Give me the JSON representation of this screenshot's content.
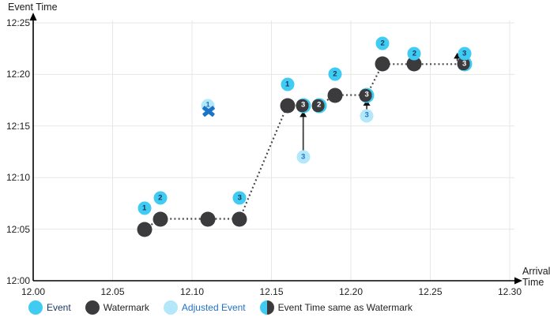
{
  "chart_data": {
    "type": "scatter",
    "ylabel": "Event Time",
    "xlabel_lines": [
      "Arrival",
      "Time"
    ],
    "x_ticks": [
      "12.00",
      "12.05",
      "12.10",
      "12.15",
      "12.20",
      "12.25",
      "12.30"
    ],
    "y_ticks": [
      "12:00",
      "12:05",
      "12:10",
      "12:15",
      "12:20",
      "12:25"
    ],
    "x_range": [
      12.0,
      12.3
    ],
    "y_range_minutes": [
      0,
      25
    ],
    "grid": true,
    "series": {
      "events": [
        {
          "n": "1",
          "arrival": 12.07,
          "event_time": "12:07"
        },
        {
          "n": "2",
          "arrival": 12.08,
          "event_time": "12:08"
        },
        {
          "n": "3",
          "arrival": 12.13,
          "event_time": "12:08"
        },
        {
          "n": "1",
          "arrival": 12.16,
          "event_time": "12:19"
        },
        {
          "n": "2",
          "arrival": 12.19,
          "event_time": "12:20"
        },
        {
          "n": "2",
          "arrival": 12.22,
          "event_time": "12:23"
        },
        {
          "n": "2",
          "arrival": 12.24,
          "event_time": "12:22"
        },
        {
          "n": "3",
          "arrival": 12.2715,
          "event_time": "12:22"
        }
      ],
      "watermarks": [
        {
          "arrival": 12.07,
          "event_time": "12:05"
        },
        {
          "arrival": 12.08,
          "event_time": "12:06"
        },
        {
          "arrival": 12.11,
          "event_time": "12:06"
        },
        {
          "arrival": 12.13,
          "event_time": "12:06"
        },
        {
          "arrival": 12.16,
          "event_time": "12:17"
        },
        {
          "arrival": 12.19,
          "event_time": "12:18"
        },
        {
          "arrival": 12.22,
          "event_time": "12:21"
        },
        {
          "arrival": 12.24,
          "event_time": "12:21"
        }
      ],
      "same_as_watermark": [
        {
          "n": "3",
          "arrival": 12.17,
          "event_time": "12:17"
        },
        {
          "n": "2",
          "arrival": 12.18,
          "event_time": "12:17"
        },
        {
          "n": "3",
          "arrival": 12.21,
          "event_time": "12:18"
        },
        {
          "n": "3",
          "arrival": 12.2715,
          "event_time": "12:21"
        }
      ],
      "adjusted_events": [
        {
          "n": "1",
          "arrival": 12.11,
          "event_time": "12:17"
        },
        {
          "n": "3",
          "arrival": 12.17,
          "event_time": "12:12"
        },
        {
          "n": "3",
          "arrival": 12.21,
          "event_time": "12:16"
        }
      ],
      "rejected_event": {
        "n": "1",
        "arrival": 12.11,
        "event_time": "12:16",
        "y_minutes": 16.45
      }
    },
    "watermark_line": [
      {
        "arrival": 12.07,
        "event_time": "12:05"
      },
      {
        "arrival": 12.08,
        "event_time": "12:06"
      },
      {
        "arrival": 12.11,
        "event_time": "12:06"
      },
      {
        "arrival": 12.13,
        "event_time": "12:06"
      },
      {
        "arrival": 12.16,
        "event_time": "12:17"
      },
      {
        "arrival": 12.17,
        "event_time": "12:17"
      },
      {
        "arrival": 12.18,
        "event_time": "12:17"
      },
      {
        "arrival": 12.19,
        "event_time": "12:18"
      },
      {
        "arrival": 12.21,
        "event_time": "12:18"
      },
      {
        "arrival": 12.22,
        "event_time": "12:21"
      },
      {
        "arrival": 12.24,
        "event_time": "12:21"
      },
      {
        "arrival": 12.2715,
        "event_time": "12:21"
      }
    ],
    "adjustment_arrows": [
      {
        "x": 12.17,
        "y1_minutes": 12.55,
        "y2_minutes": 16.45
      },
      {
        "x": 12.21,
        "y1_minutes": 16.6,
        "y2_minutes": 17.55
      },
      {
        "x": 12.267,
        "y1_minutes": 21.3,
        "y2_minutes": 22.1
      }
    ]
  },
  "legend": {
    "items": [
      {
        "type": "event",
        "label": "Event",
        "label_color_key": "navy"
      },
      {
        "type": "watermark",
        "label": "Watermark",
        "label_color_key": "black"
      },
      {
        "type": "adjusted",
        "label": "Adjusted Event",
        "label_color_key": "blue"
      },
      {
        "type": "same",
        "label": "Event Time same as Watermark",
        "label_color_key": "black"
      }
    ]
  },
  "colors": {
    "event": "#3FCBF2",
    "watermark": "#3B3A3C",
    "adjusted": "#B3E8FA",
    "navy": "#17365D",
    "blue": "#2272C3",
    "black": "#1f1f1f",
    "grid": "#E7E7E7",
    "axis": "#000000",
    "dotted_line": "#4A4A4A",
    "arrow": "#3D3D3D",
    "rejected_x": "#1E73C6"
  }
}
